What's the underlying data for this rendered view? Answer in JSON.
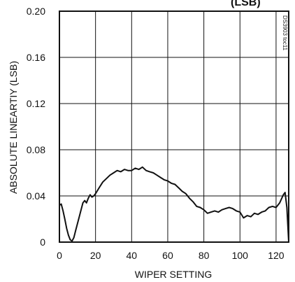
{
  "chart_data": {
    "type": "line",
    "title_fragment": "(LSB)",
    "xlabel": "WIPER SETTING",
    "ylabel": "ABSOLUTE LINEARTIY (LSB)",
    "figure_code": "DS3903 toc11",
    "xlim": [
      0,
      127
    ],
    "ylim": [
      0,
      0.2
    ],
    "x_ticks": [
      0,
      20,
      40,
      60,
      80,
      100,
      120
    ],
    "y_ticks": [
      0,
      0.04,
      0.08,
      0.12,
      0.16,
      0.2
    ],
    "x_tick_labels": [
      "0",
      "20",
      "40",
      "60",
      "80",
      "100",
      "120"
    ],
    "y_tick_labels": [
      "0",
      "0.04",
      "0.08",
      "0.12",
      "0.16",
      "0.20"
    ],
    "grid": true,
    "series": [
      {
        "color": "#111111",
        "x": [
          0,
          1,
          2,
          3,
          4,
          5,
          6,
          7,
          8,
          9,
          10,
          11,
          12,
          13,
          14,
          15,
          16,
          17,
          18,
          19,
          20,
          22,
          24,
          26,
          28,
          30,
          32,
          34,
          36,
          38,
          40,
          42,
          44,
          46,
          48,
          50,
          52,
          54,
          56,
          58,
          60,
          62,
          64,
          66,
          68,
          70,
          72,
          74,
          76,
          78,
          80,
          82,
          84,
          86,
          88,
          90,
          92,
          94,
          96,
          98,
          100,
          102,
          104,
          106,
          108,
          110,
          112,
          114,
          116,
          118,
          120,
          122,
          124,
          125,
          126,
          127
        ],
        "y": [
          0.032,
          0.033,
          0.027,
          0.02,
          0.012,
          0.006,
          0.002,
          0.001,
          0.004,
          0.01,
          0.016,
          0.022,
          0.028,
          0.034,
          0.036,
          0.034,
          0.038,
          0.041,
          0.039,
          0.04,
          0.042,
          0.047,
          0.052,
          0.055,
          0.058,
          0.06,
          0.062,
          0.061,
          0.063,
          0.062,
          0.062,
          0.064,
          0.063,
          0.065,
          0.062,
          0.061,
          0.06,
          0.058,
          0.056,
          0.054,
          0.053,
          0.051,
          0.05,
          0.047,
          0.044,
          0.042,
          0.038,
          0.035,
          0.031,
          0.03,
          0.028,
          0.025,
          0.026,
          0.027,
          0.026,
          0.028,
          0.029,
          0.03,
          0.029,
          0.027,
          0.026,
          0.021,
          0.023,
          0.022,
          0.025,
          0.024,
          0.026,
          0.027,
          0.03,
          0.031,
          0.03,
          0.034,
          0.041,
          0.043,
          0.03,
          0.0
        ]
      }
    ]
  }
}
